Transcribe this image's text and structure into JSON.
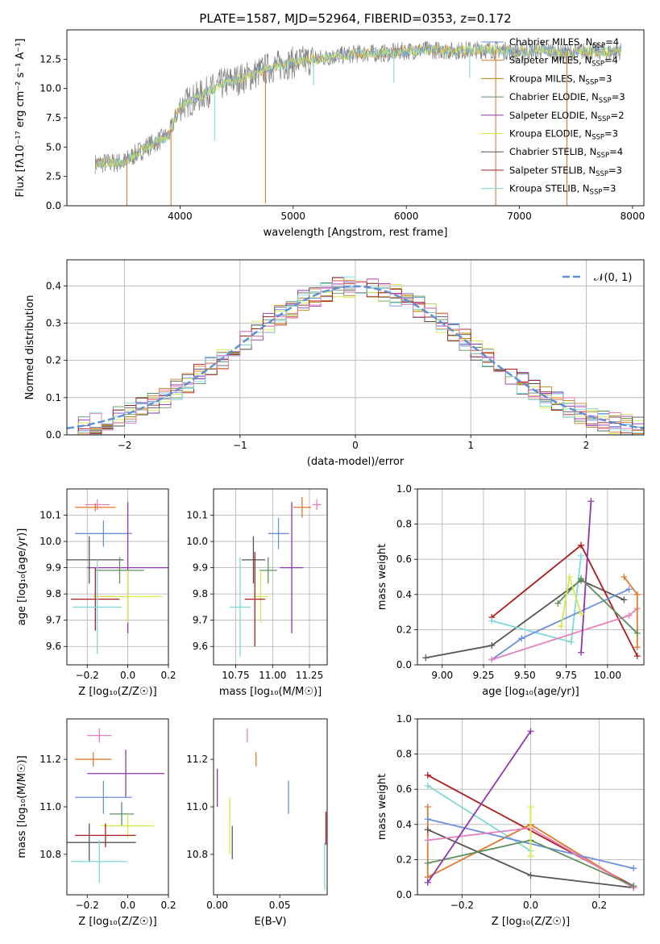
{
  "colors": {
    "ch_miles": "#6a8fe0",
    "sa_miles": "#e07a2c",
    "kr_miles": "#b8860b",
    "ch_elodie": "#5f8f5f",
    "sa_elodie": "#8e35b0",
    "kr_elodie": "#d4ea4a",
    "ch_stelib": "#555555",
    "sa_stelib": "#b01c1c",
    "kr_stelib": "#7fd9d9",
    "pink": "#e87fbd",
    "grey_spec": "#808080",
    "normal": "#5b8fd6"
  },
  "chart_data": [
    {
      "id": "spectrum",
      "type": "line",
      "title": "PLATE=1587, MJD=52964, FIBERID=0353, z=0.172",
      "xlabel": "wavelength [Angstrom, rest frame]",
      "ylabel": "Flux [fλ10⁻¹⁷ erg cm⁻² s⁻¹ A⁻¹]",
      "xlim": [
        3000,
        8100
      ],
      "ylim": [
        0,
        15
      ],
      "xticks": [
        "4000",
        "5000",
        "6000",
        "7000",
        "8000"
      ],
      "yticks": [
        "0.0",
        "2.5",
        "5.0",
        "7.5",
        "10.0",
        "12.5"
      ],
      "legend_position": "top-right",
      "legend": [
        {
          "label": "Chabrier MILES, N_SSP=4",
          "color": "ch_miles"
        },
        {
          "label": "Salpeter MILES, N_SSP=4",
          "color": "sa_miles"
        },
        {
          "label": "Kroupa MILES, N_SSP=3",
          "color": "kr_miles"
        },
        {
          "label": "Chabrier ELODIE, N_SSP=3",
          "color": "ch_elodie"
        },
        {
          "label": "Salpeter ELODIE, N_SSP=2",
          "color": "sa_elodie"
        },
        {
          "label": "Kroupa ELODIE, N_SSP=3",
          "color": "kr_elodie"
        },
        {
          "label": "Chabrier STELIB, N_SSP=4",
          "color": "ch_stelib"
        },
        {
          "label": "Salpeter STELIB, N_SSP=3",
          "color": "sa_stelib"
        },
        {
          "label": "Kroupa STELIB, N_SSP=3",
          "color": "kr_stelib"
        }
      ],
      "continuum": {
        "x": [
          3250,
          3500,
          3700,
          3900,
          4000,
          4200,
          4400,
          4600,
          4800,
          5000,
          5200,
          5400,
          5600,
          5800,
          6000,
          6200,
          6400,
          6600,
          6800,
          7000,
          7200,
          7400,
          7600,
          7800,
          7900
        ],
        "y": [
          3.6,
          3.7,
          5.0,
          6.0,
          8.5,
          9.5,
          10.5,
          11.0,
          11.8,
          12.2,
          12.5,
          12.8,
          13.0,
          13.0,
          13.2,
          13.3,
          13.2,
          13.3,
          13.3,
          13.1,
          13.3,
          13.0,
          13.2,
          13.1,
          13.2
        ]
      },
      "dips": [
        {
          "x": 3530,
          "y": 0.0
        },
        {
          "x": 3920,
          "y": 0.0
        },
        {
          "x": 4305,
          "y": 5.5
        },
        {
          "x": 4755,
          "y": 0.2
        },
        {
          "x": 5180,
          "y": 10.3
        },
        {
          "x": 5890,
          "y": 10.5
        },
        {
          "x": 6560,
          "y": 10.9
        },
        {
          "x": 6790,
          "y": 0.0
        },
        {
          "x": 7420,
          "y": 0.0
        }
      ]
    },
    {
      "id": "residuals",
      "type": "line",
      "xlabel": "(data-model)/error",
      "ylabel": "Normed distribution",
      "xlim": [
        -2.5,
        2.5
      ],
      "ylim": [
        0,
        0.47
      ],
      "xticks": [
        "−2",
        "−1",
        "0",
        "1",
        "2"
      ],
      "yticks": [
        "0.0",
        "0.1",
        "0.2",
        "0.3",
        "0.4"
      ],
      "grid": true,
      "legend": [
        {
          "label": "𝒩(0, 1)",
          "color": "normal"
        }
      ],
      "series": [
        {
          "name": "normal",
          "color": "normal",
          "style": "dashed"
        }
      ]
    },
    {
      "id": "age_vs_Z",
      "type": "scatter",
      "xlabel": "Z [log₁₀(Z/Z☉)]",
      "ylabel": "age  [log₁₀(age/yr)]",
      "xlim": [
        -0.3,
        0.2
      ],
      "ylim": [
        9.53,
        10.2
      ],
      "xticks": [
        "−0.2",
        "0.0",
        "0.2"
      ],
      "yticks": [
        "9.6",
        "9.7",
        "9.8",
        "9.9",
        "10.0",
        "10.1"
      ],
      "grid": true,
      "points": [
        {
          "color": "pink",
          "x": -0.15,
          "y": 10.14,
          "xerr": 0.06,
          "yerr": 0.02
        },
        {
          "color": "sa_miles",
          "x": -0.16,
          "y": 10.13,
          "xerr": 0.1,
          "yerr": 0.015
        },
        {
          "color": "ch_miles",
          "x": -0.12,
          "y": 10.03,
          "xerr": 0.14,
          "yerr": 0.05
        },
        {
          "color": "sa_elodie",
          "x": 0.0,
          "y": 9.9,
          "xerr": 0.2,
          "yerr": 0.25
        },
        {
          "color": "ch_stelib",
          "x": -0.19,
          "y": 9.93,
          "xerr": 0.17,
          "yerr": 0.09
        },
        {
          "color": "ch_elodie",
          "x": -0.04,
          "y": 9.89,
          "xerr": 0.12,
          "yerr": 0.05
        },
        {
          "color": "kr_elodie",
          "x": 0.0,
          "y": 9.79,
          "xerr": 0.17,
          "yerr": 0.1
        },
        {
          "color": "sa_stelib",
          "x": -0.16,
          "y": 9.78,
          "xerr": 0.12,
          "yerr": 0.12
        },
        {
          "color": "kr_stelib",
          "x": -0.15,
          "y": 9.75,
          "xerr": 0.12,
          "yerr": 0.18
        }
      ]
    },
    {
      "id": "age_vs_mass",
      "type": "scatter",
      "xlabel": "mass [log₁₀(M/M☉)]",
      "xlim": [
        10.6,
        11.37
      ],
      "ylim": [
        9.53,
        10.2
      ],
      "xticks": [
        "10.75",
        "11.00",
        "11.25"
      ],
      "yticks": [
        "9.6",
        "9.7",
        "9.8",
        "9.9",
        "10.0",
        "10.1"
      ],
      "grid": true,
      "points": [
        {
          "color": "pink",
          "x": 11.3,
          "y": 10.14,
          "xerr": 0.03,
          "yerr": 0.02
        },
        {
          "color": "sa_miles",
          "x": 11.2,
          "y": 10.13,
          "xerr": 0.06,
          "yerr": 0.04
        },
        {
          "color": "ch_miles",
          "x": 11.04,
          "y": 10.03,
          "xerr": 0.07,
          "yerr": 0.06
        },
        {
          "color": "ch_stelib",
          "x": 10.87,
          "y": 9.93,
          "xerr": 0.08,
          "yerr": 0.09
        },
        {
          "color": "sa_elodie",
          "x": 11.13,
          "y": 9.9,
          "xerr": 0.08,
          "yerr": 0.25
        },
        {
          "color": "ch_elodie",
          "x": 10.97,
          "y": 9.89,
          "xerr": 0.06,
          "yerr": 0.05
        },
        {
          "color": "kr_elodie",
          "x": 10.92,
          "y": 9.79,
          "xerr": 0.05,
          "yerr": 0.1
        },
        {
          "color": "sa_stelib",
          "x": 10.88,
          "y": 9.78,
          "xerr": 0.07,
          "yerr": 0.18
        },
        {
          "color": "kr_stelib",
          "x": 10.78,
          "y": 9.75,
          "xerr": 0.07,
          "yerr": 0.19
        }
      ]
    },
    {
      "id": "weight_vs_age",
      "type": "line",
      "xlabel": "age  [log₁₀(age/yr)]",
      "ylabel": "mass weight",
      "xlim": [
        8.85,
        10.22
      ],
      "ylim": [
        0,
        1
      ],
      "xticks": [
        "9.00",
        "9.25",
        "9.50",
        "9.75",
        "10.00"
      ],
      "yticks": [
        "0.0",
        "0.2",
        "0.4",
        "0.6",
        "0.8",
        "1.0"
      ],
      "grid": true,
      "series": [
        {
          "color": "ch_stelib",
          "x": [
            8.9,
            9.3,
            9.84,
            10.1
          ],
          "y": [
            0.04,
            0.11,
            0.48,
            0.37
          ]
        },
        {
          "color": "sa_stelib",
          "x": [
            9.3,
            9.84,
            10.18
          ],
          "y": [
            0.27,
            0.68,
            0.05
          ]
        },
        {
          "color": "kr_stelib",
          "x": [
            9.3,
            9.78,
            9.84
          ],
          "y": [
            0.25,
            0.13,
            0.62
          ]
        },
        {
          "color": "ch_miles",
          "x": [
            9.3,
            9.48,
            10.13
          ],
          "y": [
            0.03,
            0.15,
            0.43
          ]
        },
        {
          "color": "pink",
          "x": [
            9.3,
            10.13,
            10.18
          ],
          "y": [
            0.03,
            0.28,
            0.32
          ]
        },
        {
          "color": "sa_miles",
          "x": [
            10.1,
            10.18,
            10.18
          ],
          "y": [
            0.5,
            0.4,
            0.1
          ]
        },
        {
          "color": "sa_elodie",
          "x": [
            9.84,
            9.9
          ],
          "y": [
            0.07,
            0.93
          ]
        },
        {
          "color": "ch_elodie",
          "x": [
            9.7,
            9.84,
            10.18
          ],
          "y": [
            0.35,
            0.49,
            0.18
          ]
        },
        {
          "color": "kr_elodie",
          "x": [
            9.72,
            9.77,
            9.84
          ],
          "y": [
            0.22,
            0.5,
            0.29
          ]
        }
      ]
    },
    {
      "id": "mass_vs_Z",
      "type": "scatter",
      "xlabel": "Z [log₁₀(Z/Z☉)]",
      "ylabel": "mass [log₁₀(M/M☉)]",
      "xlim": [
        -0.3,
        0.2
      ],
      "ylim": [
        10.63,
        11.37
      ],
      "xticks": [
        "−0.2",
        "0.0",
        "0.2"
      ],
      "yticks": [
        "10.8",
        "11.0",
        "11.2"
      ],
      "points": [
        {
          "color": "pink",
          "x": -0.14,
          "y": 11.3,
          "xerr": 0.06,
          "yerr": 0.03
        },
        {
          "color": "sa_miles",
          "x": -0.17,
          "y": 11.2,
          "xerr": 0.09,
          "yerr": 0.03
        },
        {
          "color": "sa_elodie",
          "x": -0.01,
          "y": 11.14,
          "xerr": 0.19,
          "yerr": 0.1
        },
        {
          "color": "ch_miles",
          "x": -0.12,
          "y": 11.04,
          "xerr": 0.14,
          "yerr": 0.07
        },
        {
          "color": "ch_elodie",
          "x": -0.03,
          "y": 10.97,
          "xerr": 0.06,
          "yerr": 0.05
        },
        {
          "color": "kr_elodie",
          "x": 0.0,
          "y": 10.92,
          "xerr": 0.13,
          "yerr": 0.05
        },
        {
          "color": "sa_stelib",
          "x": -0.11,
          "y": 10.88,
          "xerr": 0.15,
          "yerr": 0.05
        },
        {
          "color": "ch_stelib",
          "x": -0.19,
          "y": 10.85,
          "xerr": 0.23,
          "yerr": 0.08
        },
        {
          "color": "kr_stelib",
          "x": -0.14,
          "y": 10.77,
          "xerr": 0.14,
          "yerr": 0.09
        }
      ]
    },
    {
      "id": "mass_vs_ebv",
      "type": "scatter",
      "xlabel": "E(B-V)",
      "xlim": [
        -0.003,
        0.088
      ],
      "ylim": [
        10.63,
        11.37
      ],
      "xticks": [
        "0.00",
        "0.05"
      ],
      "yticks": [
        "10.8",
        "11.0",
        "11.2"
      ],
      "points": [
        {
          "color": "pink",
          "x": 0.024,
          "y": 11.3,
          "xerr": 0,
          "yerr": 0.03
        },
        {
          "color": "sa_miles",
          "x": 0.031,
          "y": 11.2,
          "xerr": 0,
          "yerr": 0.03
        },
        {
          "color": "ch_miles",
          "x": 0.057,
          "y": 11.04,
          "xerr": 0,
          "yerr": 0.07
        },
        {
          "color": "sa_elodie",
          "x": 0.0,
          "y": 11.08,
          "xerr": 0,
          "yerr": 0.08
        },
        {
          "color": "kr_elodie",
          "x": 0.01,
          "y": 10.92,
          "xerr": 0,
          "yerr": 0.12
        },
        {
          "color": "ch_stelib",
          "x": 0.012,
          "y": 10.85,
          "xerr": 0,
          "yerr": 0.07
        },
        {
          "color": "sa_stelib",
          "x": 0.087,
          "y": 10.91,
          "xerr": 0,
          "yerr": 0.07
        },
        {
          "color": "kr_stelib",
          "x": 0.086,
          "y": 10.75,
          "xerr": 0,
          "yerr": 0.1
        }
      ]
    },
    {
      "id": "weight_vs_Z",
      "type": "line",
      "xlabel": "Z [log₁₀(Z/Z☉)]",
      "ylabel": "mass weight",
      "xlim": [
        -0.33,
        0.33
      ],
      "ylim": [
        0,
        1
      ],
      "xticks": [
        "−0.2",
        "0.0",
        "0.2"
      ],
      "yticks": [
        "0.0",
        "0.2",
        "0.4",
        "0.6",
        "0.8",
        "1.0"
      ],
      "grid": true,
      "series": [
        {
          "color": "sa_stelib",
          "x": [
            -0.3,
            0.3
          ],
          "y": [
            0.68,
            0.05
          ]
        },
        {
          "color": "kr_stelib",
          "x": [
            -0.3,
            0.0
          ],
          "y": [
            0.62,
            0.25
          ]
        },
        {
          "color": "sa_miles",
          "x": [
            -0.3,
            -0.3,
            0.0,
            0.3
          ],
          "y": [
            0.5,
            0.1,
            0.4,
            0.04
          ]
        },
        {
          "color": "ch_miles",
          "x": [
            -0.3,
            0.3
          ],
          "y": [
            0.43,
            0.15
          ]
        },
        {
          "color": "ch_stelib",
          "x": [
            -0.3,
            0.0,
            0.3
          ],
          "y": [
            0.37,
            0.11,
            0.04
          ]
        },
        {
          "color": "pink",
          "x": [
            -0.3,
            0.0,
            0.3
          ],
          "y": [
            0.31,
            0.38,
            0.04
          ]
        },
        {
          "color": "ch_elodie",
          "x": [
            -0.3,
            0.0,
            0.3
          ],
          "y": [
            0.18,
            0.31,
            0.05
          ]
        },
        {
          "color": "sa_elodie",
          "x": [
            -0.3,
            0.0
          ],
          "y": [
            0.07,
            0.93
          ]
        },
        {
          "color": "kr_elodie",
          "x": [
            0.0,
            0.0
          ],
          "y": [
            0.22,
            0.5
          ]
        }
      ]
    }
  ]
}
